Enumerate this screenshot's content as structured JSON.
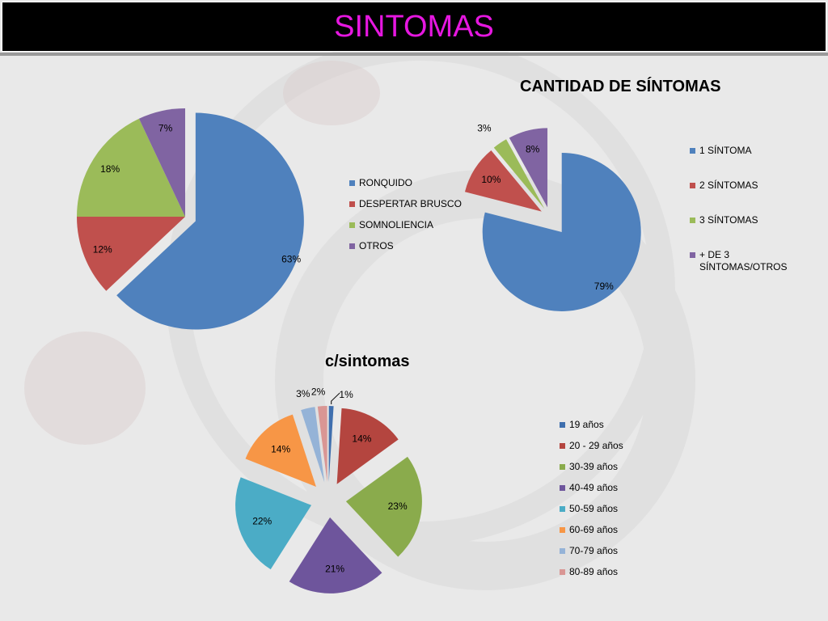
{
  "header": {
    "title": "SINTOMAS"
  },
  "colors": {
    "title_text": "#e617e0",
    "blue": "#4f81bd",
    "red": "#c0504d",
    "green": "#9bbb59",
    "purple": "#8064a2",
    "green_dark": "#8aab4c",
    "purple_dark": "#6e559c",
    "teal": "#4bacc6",
    "orange": "#f79646",
    "light_blue": "#95b3d7",
    "pink": "#d99694",
    "blue_dark": "#3f6fae",
    "red_dark": "#b4453f"
  },
  "chart_data": [
    {
      "type": "pie",
      "title": "",
      "categories": [
        "RONQUIDO",
        "DESPERTAR BRUSCO",
        "SOMNOLIENCIA",
        "OTROS"
      ],
      "values": [
        63,
        12,
        18,
        7
      ],
      "labels": [
        "63%",
        "12%",
        "18%",
        "7%"
      ],
      "colors": [
        "#4f81bd",
        "#c0504d",
        "#9bbb59",
        "#8064a2"
      ],
      "legend_position": "right"
    },
    {
      "type": "pie",
      "title": "CANTIDAD DE SÍNTOMAS",
      "categories": [
        "1 SÍNTOMA",
        "2 SÍNTOMAS",
        "3 SÍNTOMAS",
        "+ DE 3 SÍNTOMAS/OTROS"
      ],
      "legend_lines": [
        [
          "1 SÍNTOMA"
        ],
        [
          "2 SÍNTOMAS"
        ],
        [
          "3 SÍNTOMAS"
        ],
        [
          " + DE 3",
          "SÍNTOMAS/OTROS"
        ]
      ],
      "values": [
        79,
        10,
        3,
        8
      ],
      "labels": [
        "79%",
        "10%",
        "3%",
        "8%"
      ],
      "colors": [
        "#4f81bd",
        "#c0504d",
        "#9bbb59",
        "#8064a2"
      ],
      "legend_position": "right"
    },
    {
      "type": "pie",
      "title": "c/sintomas",
      "categories": [
        "19 años",
        "20 - 29 años",
        "30-39 años",
        "40-49 años",
        "50-59 años",
        "60-69 años",
        "70-79 años",
        "80-89 años"
      ],
      "values": [
        1,
        14,
        23,
        21,
        22,
        14,
        3,
        2
      ],
      "labels": [
        "1%",
        "14%",
        "23%",
        "21%",
        "22%",
        "14%",
        "3%",
        "2%"
      ],
      "colors": [
        "#3f6fae",
        "#b4453f",
        "#8aab4c",
        "#6e559c",
        "#4bacc6",
        "#f79646",
        "#95b3d7",
        "#d99694"
      ],
      "legend_position": "right"
    }
  ]
}
